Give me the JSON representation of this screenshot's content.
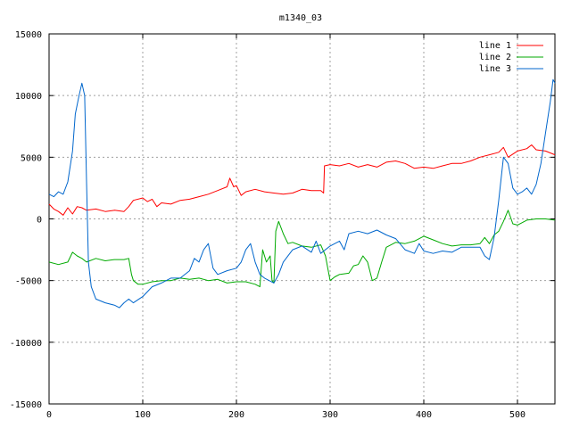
{
  "chart_data": {
    "type": "line",
    "title": "m1340_03",
    "xlabel": "",
    "ylabel": "",
    "xlim": [
      0,
      540
    ],
    "ylim": [
      -15000,
      15000
    ],
    "x_ticks": [
      0,
      100,
      200,
      300,
      400,
      500
    ],
    "y_ticks": [
      -15000,
      -10000,
      -5000,
      0,
      5000,
      10000,
      15000
    ],
    "grid": true,
    "legend_position": "top-right",
    "series": [
      {
        "name": "line 1",
        "color": "#ff0000",
        "points": [
          [
            0,
            1200
          ],
          [
            5,
            800
          ],
          [
            10,
            600
          ],
          [
            15,
            300
          ],
          [
            20,
            900
          ],
          [
            25,
            400
          ],
          [
            30,
            1000
          ],
          [
            35,
            900
          ],
          [
            40,
            700
          ],
          [
            50,
            800
          ],
          [
            60,
            600
          ],
          [
            70,
            700
          ],
          [
            80,
            600
          ],
          [
            85,
            1000
          ],
          [
            90,
            1500
          ],
          [
            100,
            1700
          ],
          [
            105,
            1400
          ],
          [
            110,
            1600
          ],
          [
            115,
            1000
          ],
          [
            120,
            1300
          ],
          [
            130,
            1200
          ],
          [
            140,
            1500
          ],
          [
            150,
            1600
          ],
          [
            160,
            1800
          ],
          [
            170,
            2000
          ],
          [
            180,
            2300
          ],
          [
            190,
            2600
          ],
          [
            193,
            3300
          ],
          [
            197,
            2600
          ],
          [
            200,
            2700
          ],
          [
            205,
            1900
          ],
          [
            210,
            2200
          ],
          [
            220,
            2400
          ],
          [
            230,
            2200
          ],
          [
            240,
            2100
          ],
          [
            250,
            2000
          ],
          [
            260,
            2100
          ],
          [
            270,
            2400
          ],
          [
            280,
            2300
          ],
          [
            290,
            2300
          ],
          [
            293,
            2100
          ],
          [
            294,
            4300
          ],
          [
            300,
            4400
          ],
          [
            310,
            4300
          ],
          [
            320,
            4500
          ],
          [
            330,
            4200
          ],
          [
            340,
            4400
          ],
          [
            350,
            4200
          ],
          [
            360,
            4600
          ],
          [
            370,
            4700
          ],
          [
            380,
            4500
          ],
          [
            390,
            4100
          ],
          [
            400,
            4200
          ],
          [
            410,
            4100
          ],
          [
            420,
            4300
          ],
          [
            430,
            4500
          ],
          [
            440,
            4500
          ],
          [
            450,
            4700
          ],
          [
            460,
            5000
          ],
          [
            470,
            5200
          ],
          [
            480,
            5400
          ],
          [
            485,
            5800
          ],
          [
            490,
            5000
          ],
          [
            500,
            5500
          ],
          [
            510,
            5700
          ],
          [
            515,
            6000
          ],
          [
            520,
            5600
          ],
          [
            530,
            5500
          ],
          [
            540,
            5200
          ]
        ]
      },
      {
        "name": "line 2",
        "color": "#00aa00",
        "points": [
          [
            0,
            -3500
          ],
          [
            10,
            -3700
          ],
          [
            20,
            -3500
          ],
          [
            25,
            -2700
          ],
          [
            30,
            -3000
          ],
          [
            35,
            -3200
          ],
          [
            40,
            -3500
          ],
          [
            50,
            -3200
          ],
          [
            60,
            -3400
          ],
          [
            70,
            -3300
          ],
          [
            80,
            -3300
          ],
          [
            85,
            -3200
          ],
          [
            88,
            -4500
          ],
          [
            90,
            -5000
          ],
          [
            95,
            -5300
          ],
          [
            100,
            -5300
          ],
          [
            110,
            -5100
          ],
          [
            120,
            -5000
          ],
          [
            130,
            -5000
          ],
          [
            140,
            -4800
          ],
          [
            150,
            -4900
          ],
          [
            160,
            -4800
          ],
          [
            170,
            -5000
          ],
          [
            180,
            -4900
          ],
          [
            190,
            -5200
          ],
          [
            200,
            -5100
          ],
          [
            210,
            -5100
          ],
          [
            220,
            -5300
          ],
          [
            225,
            -5500
          ],
          [
            228,
            -2500
          ],
          [
            232,
            -3500
          ],
          [
            236,
            -3000
          ],
          [
            238,
            -5000
          ],
          [
            240,
            -5200
          ],
          [
            242,
            -1000
          ],
          [
            245,
            -200
          ],
          [
            250,
            -1200
          ],
          [
            255,
            -2000
          ],
          [
            260,
            -1900
          ],
          [
            270,
            -2200
          ],
          [
            280,
            -2300
          ],
          [
            290,
            -2100
          ],
          [
            295,
            -3000
          ],
          [
            300,
            -5000
          ],
          [
            305,
            -4700
          ],
          [
            310,
            -4500
          ],
          [
            320,
            -4400
          ],
          [
            325,
            -3800
          ],
          [
            330,
            -3700
          ],
          [
            335,
            -3000
          ],
          [
            340,
            -3500
          ],
          [
            345,
            -5000
          ],
          [
            350,
            -4800
          ],
          [
            355,
            -3500
          ],
          [
            360,
            -2300
          ],
          [
            370,
            -1900
          ],
          [
            380,
            -2000
          ],
          [
            390,
            -1800
          ],
          [
            400,
            -1400
          ],
          [
            410,
            -1700
          ],
          [
            420,
            -2000
          ],
          [
            430,
            -2200
          ],
          [
            440,
            -2100
          ],
          [
            450,
            -2100
          ],
          [
            460,
            -2000
          ],
          [
            465,
            -1500
          ],
          [
            470,
            -2000
          ],
          [
            475,
            -1300
          ],
          [
            480,
            -1000
          ],
          [
            485,
            -200
          ],
          [
            490,
            700
          ],
          [
            495,
            -400
          ],
          [
            500,
            -500
          ],
          [
            505,
            -300
          ],
          [
            510,
            -100
          ],
          [
            520,
            0
          ],
          [
            530,
            0
          ],
          [
            540,
            -100
          ]
        ]
      },
      {
        "name": "line 3",
        "color": "#0066cc",
        "points": [
          [
            0,
            2000
          ],
          [
            5,
            1800
          ],
          [
            10,
            2200
          ],
          [
            15,
            2000
          ],
          [
            20,
            3000
          ],
          [
            25,
            5500
          ],
          [
            28,
            8500
          ],
          [
            32,
            10000
          ],
          [
            35,
            11000
          ],
          [
            38,
            10000
          ],
          [
            40,
            3000
          ],
          [
            42,
            -3500
          ],
          [
            45,
            -5500
          ],
          [
            50,
            -6500
          ],
          [
            60,
            -6800
          ],
          [
            70,
            -7000
          ],
          [
            75,
            -7200
          ],
          [
            80,
            -6800
          ],
          [
            85,
            -6500
          ],
          [
            90,
            -6800
          ],
          [
            100,
            -6300
          ],
          [
            110,
            -5500
          ],
          [
            120,
            -5200
          ],
          [
            130,
            -4800
          ],
          [
            140,
            -4800
          ],
          [
            150,
            -4200
          ],
          [
            155,
            -3200
          ],
          [
            160,
            -3500
          ],
          [
            165,
            -2500
          ],
          [
            170,
            -2000
          ],
          [
            175,
            -4000
          ],
          [
            180,
            -4500
          ],
          [
            190,
            -4200
          ],
          [
            200,
            -4000
          ],
          [
            205,
            -3500
          ],
          [
            210,
            -2500
          ],
          [
            215,
            -2000
          ],
          [
            220,
            -3500
          ],
          [
            225,
            -4500
          ],
          [
            230,
            -4800
          ],
          [
            240,
            -5200
          ],
          [
            245,
            -4500
          ],
          [
            250,
            -3500
          ],
          [
            260,
            -2500
          ],
          [
            270,
            -2200
          ],
          [
            280,
            -2700
          ],
          [
            285,
            -1800
          ],
          [
            290,
            -2800
          ],
          [
            300,
            -2200
          ],
          [
            310,
            -1800
          ],
          [
            315,
            -2500
          ],
          [
            320,
            -1200
          ],
          [
            330,
            -1000
          ],
          [
            340,
            -1200
          ],
          [
            350,
            -900
          ],
          [
            360,
            -1300
          ],
          [
            370,
            -1600
          ],
          [
            380,
            -2500
          ],
          [
            390,
            -2800
          ],
          [
            395,
            -2000
          ],
          [
            400,
            -2600
          ],
          [
            410,
            -2800
          ],
          [
            420,
            -2600
          ],
          [
            430,
            -2700
          ],
          [
            440,
            -2300
          ],
          [
            450,
            -2300
          ],
          [
            460,
            -2300
          ],
          [
            465,
            -3000
          ],
          [
            470,
            -3300
          ],
          [
            475,
            -1500
          ],
          [
            480,
            1500
          ],
          [
            485,
            5000
          ],
          [
            490,
            4500
          ],
          [
            495,
            2500
          ],
          [
            500,
            2000
          ],
          [
            505,
            2200
          ],
          [
            510,
            2500
          ],
          [
            515,
            2000
          ],
          [
            520,
            2800
          ],
          [
            525,
            4500
          ],
          [
            530,
            7000
          ],
          [
            535,
            9500
          ],
          [
            538,
            11300
          ],
          [
            540,
            11000
          ]
        ]
      }
    ]
  }
}
